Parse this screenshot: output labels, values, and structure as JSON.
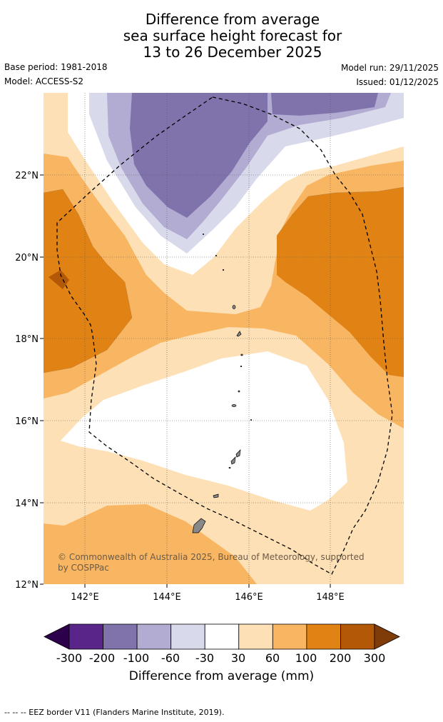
{
  "title": {
    "line1": "Difference from average",
    "line2": "sea surface height forecast for",
    "line3": "13 to 26 December 2025"
  },
  "meta": {
    "base_period": "Base period: 1981-2018",
    "model": "Model: ACCESS-S2",
    "model_run": "Model run: 29/11/2025",
    "issued": "Issued: 01/12/2025"
  },
  "map": {
    "lat_labels": [
      "22°N",
      "20°N",
      "18°N",
      "16°N",
      "14°N",
      "12°N"
    ],
    "lon_labels": [
      "142°E",
      "144°E",
      "146°E",
      "148°E"
    ],
    "copyright": "© Commonwealth of Australia 2025, Bureau of Meteorology, supported by COSPPac",
    "copyright_line1": "© Commonwealth of Australia 2025, Bureau of Meteorology, supported",
    "copyright_line2": "by COSPPac"
  },
  "colorbar": {
    "ticks": [
      "-300",
      "-200",
      "-100",
      "-60",
      "-30",
      "30",
      "60",
      "100",
      "200",
      "300"
    ],
    "colors": [
      "#5a2589",
      "#8073ac",
      "#b2abd2",
      "#d8daeb",
      "#ffffff",
      "#fee0b6",
      "#f9b662",
      "#e08214",
      "#b35806"
    ],
    "under_color": "#2d004b",
    "over_color": "#7f3b08",
    "label": "Difference from average (mm)"
  },
  "footer": "--  --  -- EEZ border V11 (Flanders Marine Institute, 2019)."
}
